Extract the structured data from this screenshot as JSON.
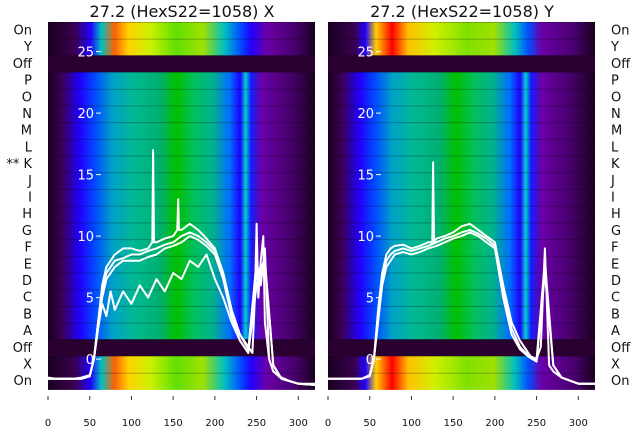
{
  "panels": [
    {
      "id": "x",
      "title": "27.2 (HexS22=1058) X"
    },
    {
      "id": "y",
      "title": "27.2 (HexS22=1058) Y"
    }
  ],
  "row_labels_left": [
    "On",
    "Y",
    "Off",
    "P",
    "O",
    "N",
    "M",
    "L",
    "** K",
    "J",
    "I",
    "H",
    "G",
    "F",
    "E",
    "D",
    "C",
    "B",
    "A",
    "Off",
    "X",
    "On"
  ],
  "row_labels_right": [
    "On",
    "Y",
    "Off",
    "P",
    "O",
    "N",
    "M",
    "L",
    "K",
    "J",
    "I",
    "H",
    "G",
    "F",
    "E",
    "D",
    "C",
    "B",
    "A",
    "Off",
    "X",
    "On"
  ],
  "colors": {
    "line": "#ffffff",
    "off_band": "#2a0030",
    "colormap": [
      "#000000",
      "#3a0050",
      "#6a00a8",
      "#2000ff",
      "#0050ff",
      "#00a0c8",
      "#00b894",
      "#00c060",
      "#00d000",
      "#a0e000",
      "#ffff00",
      "#ffc000",
      "#ff6000",
      "#ff0000"
    ]
  },
  "chart_data": [
    {
      "type": "line",
      "title": "27.2 (HexS22=1058) X",
      "xlim": [
        0,
        320
      ],
      "ylim": [
        -3,
        27
      ],
      "x_ticks": [
        0,
        50,
        100,
        150,
        200,
        250,
        300
      ],
      "y_ticks": [
        0,
        5,
        10,
        15,
        20,
        25
      ],
      "series": [
        {
          "x": [
            0,
            10,
            20,
            30,
            40,
            50,
            55,
            60,
            65,
            70,
            75,
            80,
            90,
            100,
            110,
            120,
            125,
            126,
            127,
            130,
            140,
            150,
            155,
            156,
            157,
            160,
            170,
            180,
            190,
            200,
            210,
            220,
            230,
            240,
            245,
            248,
            250,
            252,
            255,
            258,
            260,
            265,
            270,
            280,
            290,
            300,
            310,
            320
          ],
          "y": [
            -1.5,
            -1.6,
            -1.6,
            -1.6,
            -1.5,
            -1.3,
            0,
            3,
            6,
            7.5,
            8,
            8.5,
            9,
            9,
            8.8,
            9,
            9.5,
            17,
            9.5,
            9.5,
            9.8,
            10,
            10.5,
            13,
            10.5,
            10.5,
            11,
            10.5,
            9.8,
            9,
            7,
            4,
            2,
            1,
            0.5,
            5,
            11,
            5,
            8,
            10,
            3,
            0,
            -1,
            -1.5,
            -1.8,
            -2,
            -2,
            -2
          ]
        },
        {
          "x": [
            0,
            40,
            50,
            55,
            60,
            65,
            70,
            75,
            80,
            90,
            100,
            110,
            120,
            130,
            140,
            150,
            160,
            170,
            180,
            190,
            200,
            210,
            220,
            230,
            240,
            250,
            255,
            260,
            265,
            270,
            280,
            300,
            320
          ],
          "y": [
            -1.6,
            -1.6,
            -1.4,
            0,
            3,
            5.5,
            7,
            7.5,
            8,
            8.2,
            8.5,
            8.5,
            8.8,
            9,
            9.3,
            9.5,
            10,
            10.3,
            10,
            9.5,
            8.8,
            7,
            4,
            2,
            0.8,
            8,
            6,
            9,
            0,
            -1,
            -1.6,
            -2,
            -2.1
          ]
        },
        {
          "x": [
            0,
            40,
            50,
            55,
            60,
            65,
            70,
            75,
            80,
            90,
            100,
            110,
            120,
            130,
            140,
            150,
            160,
            170,
            180,
            190,
            200,
            210,
            220,
            230,
            240,
            250,
            260,
            270,
            280,
            300,
            320
          ],
          "y": [
            -1.6,
            -1.6,
            -1.4,
            0,
            2.5,
            5,
            6.5,
            7,
            7.5,
            8,
            8,
            8,
            8.3,
            8.5,
            9,
            9.2,
            9.5,
            10,
            9.7,
            9.2,
            8.5,
            6.5,
            3.5,
            1.5,
            0.5,
            7,
            8,
            -0.5,
            -1.6,
            -2,
            -2.1
          ]
        },
        {
          "x": [
            0,
            40,
            50,
            55,
            60,
            65,
            70,
            75,
            80,
            90,
            100,
            110,
            120,
            130,
            140,
            150,
            160,
            170,
            180,
            190,
            200,
            210,
            220,
            230,
            240,
            250,
            260,
            270,
            280,
            300,
            320
          ],
          "y": [
            -1.6,
            -1.6,
            -1.4,
            0,
            2.5,
            4.5,
            3.5,
            5.5,
            4,
            5.5,
            4.5,
            6,
            5,
            6.5,
            5.5,
            7,
            6.5,
            8,
            7.5,
            8.5,
            6.5,
            5,
            3,
            1.5,
            0.5,
            6,
            8,
            -0.5,
            -1.6,
            -2,
            -2.1
          ]
        }
      ]
    },
    {
      "type": "line",
      "title": "27.2 (HexS22=1058) Y",
      "xlim": [
        0,
        320
      ],
      "ylim": [
        -3,
        27
      ],
      "x_ticks": [
        0,
        50,
        100,
        150,
        200,
        250,
        300
      ],
      "y_ticks": [
        0,
        5,
        10,
        15,
        20,
        25
      ],
      "series": [
        {
          "x": [
            0,
            40,
            50,
            55,
            60,
            65,
            70,
            75,
            80,
            90,
            100,
            110,
            120,
            125,
            126,
            127,
            130,
            140,
            150,
            160,
            170,
            180,
            190,
            200,
            210,
            220,
            230,
            240,
            245,
            250,
            255,
            260,
            265,
            270,
            280,
            300,
            320
          ],
          "y": [
            -1.6,
            -1.6,
            -1.3,
            0,
            4,
            7,
            8.5,
            9,
            9.2,
            9.3,
            9,
            9.2,
            9.5,
            9.5,
            16,
            9.5,
            9.8,
            10,
            10.3,
            10.8,
            11,
            10.5,
            10,
            9.5,
            6,
            3,
            1.5,
            0.5,
            0,
            0,
            1,
            9,
            -0.5,
            -1,
            -1.5,
            -2,
            -2
          ]
        },
        {
          "x": [
            0,
            40,
            50,
            55,
            60,
            65,
            70,
            75,
            80,
            90,
            100,
            110,
            120,
            130,
            140,
            150,
            160,
            170,
            180,
            190,
            200,
            210,
            220,
            230,
            240,
            250,
            260,
            270,
            280,
            300,
            320
          ],
          "y": [
            -1.6,
            -1.6,
            -1.4,
            0,
            3.5,
            6.5,
            8,
            8.5,
            8.8,
            9,
            8.8,
            9,
            9.2,
            9.5,
            9.8,
            10,
            10.3,
            10.5,
            10.2,
            9.8,
            9.2,
            5.5,
            2.5,
            1,
            0.3,
            0,
            8,
            -0.5,
            -1.5,
            -2,
            -2
          ]
        },
        {
          "x": [
            0,
            40,
            50,
            55,
            60,
            65,
            70,
            75,
            80,
            90,
            100,
            110,
            120,
            130,
            140,
            150,
            160,
            170,
            180,
            190,
            200,
            210,
            220,
            230,
            240,
            250,
            260,
            270,
            280,
            300,
            320
          ],
          "y": [
            -1.6,
            -1.6,
            -1.4,
            0,
            3,
            6,
            7.5,
            8,
            8.5,
            8.7,
            8.5,
            8.7,
            9,
            9.2,
            9.5,
            9.8,
            10,
            10.3,
            10,
            9.5,
            9,
            5,
            2,
            0.8,
            0.2,
            -0.2,
            7,
            -0.5,
            -1.5,
            -2,
            -2
          ]
        }
      ]
    }
  ]
}
